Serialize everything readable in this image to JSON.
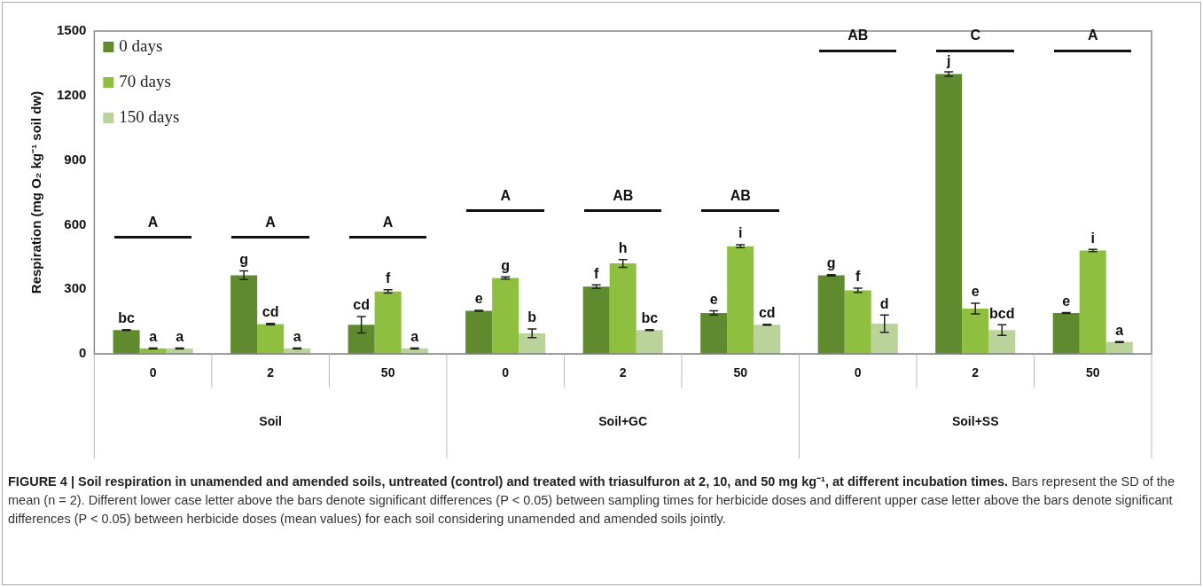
{
  "chart_data": {
    "type": "bar",
    "title": "FIGURE 4 | Soil respiration in unamended and amended soils, untreated (control) and treated with triasulfuron at 2, 10, and 50 mg kg⁻¹, at different incubation times.",
    "subtitle": "Bars represent the SD of the mean (n = 2). Different lower case letter above the bars denote significant differences (P < 0.05) between sampling times for herbicide doses and different upper case letter above the bars denote significant differences (P < 0.05) between herbicide doses (mean values) for each soil considering unamended and amended soils jointly.",
    "ylabel": "Respiration (mg O₂ kg⁻¹ soil dw)",
    "categories": [
      "0",
      "2",
      "50",
      "0",
      "2",
      "50",
      "0",
      "2",
      "50"
    ],
    "series": [
      {
        "name": "0 days",
        "color": "#5f8a2e",
        "values": [
          110,
          365,
          135,
          200,
          312,
          190,
          365,
          1300,
          190
        ],
        "errors": [
          2,
          20,
          38,
          2,
          8,
          10,
          3,
          10,
          2
        ],
        "value_labels": [
          "bc",
          "g",
          "cd",
          "e",
          "f",
          "e",
          "g",
          "j",
          "e"
        ]
      },
      {
        "name": "70 days",
        "color": "#8fbf3f",
        "values": [
          25,
          138,
          290,
          352,
          420,
          500,
          295,
          210,
          480
        ],
        "errors": [
          2,
          3,
          8,
          5,
          18,
          7,
          10,
          25,
          5
        ],
        "value_labels": [
          "a",
          "cd",
          "f",
          "g",
          "h",
          "i",
          "f",
          "e",
          "i"
        ]
      },
      {
        "name": "150 days",
        "color": "#b9d39a",
        "values": [
          25,
          25,
          25,
          95,
          110,
          135,
          140,
          110,
          55
        ],
        "errors": [
          2,
          2,
          2,
          20,
          2,
          2,
          40,
          25,
          2
        ],
        "value_labels": [
          "a",
          "a",
          "a",
          "b",
          "bc",
          "cd",
          "d",
          "bcd",
          "a"
        ]
      }
    ],
    "ylim": [
      0,
      1500
    ],
    "yticks": [
      0,
      300,
      600,
      900,
      1200,
      1500
    ],
    "legend": "top left",
    "annotations": [
      "A",
      "A",
      "A",
      "A",
      "AB",
      "AB",
      "AB",
      "C",
      "A",
      "Soil",
      "Soil+GC",
      "Soil+SS"
    ]
  }
}
